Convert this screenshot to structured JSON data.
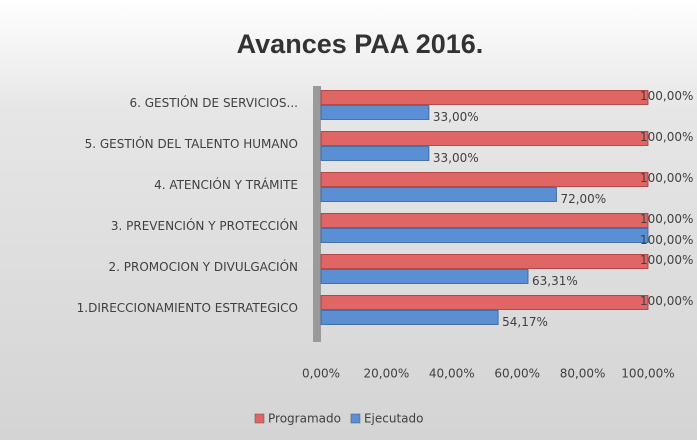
{
  "chart_data": {
    "type": "bar",
    "orientation": "horizontal",
    "title": "Avances PAA 2016.",
    "categories": [
      "1.DIRECCIONAMIENTO ESTRATEGICO",
      "2. PROMOCION Y DIVULGACIÓN",
      "3. PREVENCIÓN Y PROTECCIÓN",
      "4. ATENCIÓN Y TRÁMITE",
      "5. GESTIÓN DEL TALENTO HUMANO",
      "6. GESTIÓN DE SERVICIOS..."
    ],
    "series": [
      {
        "name": "Programado",
        "color": "#e06666",
        "values": [
          100,
          100,
          100,
          100,
          100,
          100
        ],
        "value_labels": [
          "100,00%",
          "100,00%",
          "100,00%",
          "100,00%",
          "100,00%",
          "100,00%"
        ]
      },
      {
        "name": "Ejecutado",
        "color": "#5b8fd4",
        "values": [
          54.17,
          63.31,
          100,
          72,
          33,
          33
        ],
        "value_labels": [
          "54,17%",
          "63,31%",
          "100,00%",
          "72,00%",
          "33,00%",
          "33,00%"
        ]
      }
    ],
    "xlim": [
      0,
      100
    ],
    "xticks": [
      {
        "value": 0,
        "label": "0,00%"
      },
      {
        "value": 20,
        "label": "20,00%"
      },
      {
        "value": 40,
        "label": "40,00%"
      },
      {
        "value": 60,
        "label": "60,00%"
      },
      {
        "value": 80,
        "label": "80,00%"
      },
      {
        "value": 100,
        "label": "100,00%"
      }
    ],
    "legend": "bottom"
  }
}
